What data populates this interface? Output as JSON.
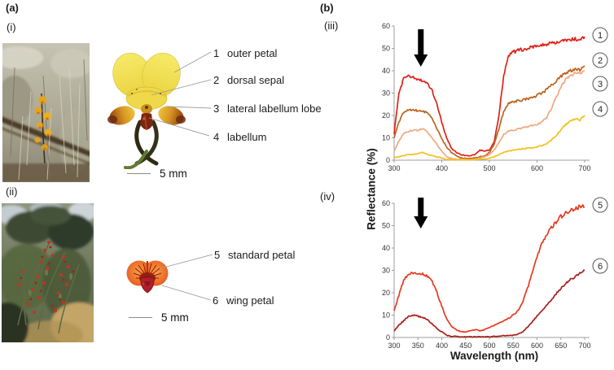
{
  "panel_a": {
    "label": "(a)",
    "sub_i": {
      "label": "(i)",
      "photo_desc": "yellow donkey-orchid flowering in bushland",
      "scale_bar": "5 mm",
      "anatomy_labels": [
        {
          "num": "1",
          "text": "outer petal"
        },
        {
          "num": "2",
          "text": "dorsal sepal"
        },
        {
          "num": "3",
          "text": "lateral labellum lobe"
        },
        {
          "num": "4",
          "text": "labellum"
        }
      ]
    },
    "sub_ii": {
      "label": "(ii)",
      "photo_desc": "shrub with red-orange pea flowers",
      "scale_bar": "5 mm",
      "anatomy_labels": [
        {
          "num": "5",
          "text": "standard petal"
        },
        {
          "num": "6",
          "text": "wing petal"
        }
      ]
    }
  },
  "panel_b": {
    "label": "(b)",
    "y_axis_title": "Reflectance (%)",
    "x_axis_title": "Wavelength (nm)"
  },
  "chart_data": [
    {
      "id": "iii",
      "panel_label": "(iii)",
      "type": "line",
      "xlabel": "Wavelength (nm)",
      "ylabel": "Reflectance (%)",
      "xlim": [
        300,
        700
      ],
      "ylim": [
        0,
        60
      ],
      "x_ticks": [
        300,
        400,
        500,
        600,
        700
      ],
      "y_ticks": [
        0,
        10,
        20,
        30,
        40,
        50,
        60
      ],
      "grid": false,
      "annotation": "black downward arrow marking UV reflectance peak near 350 nm",
      "arrow_nm": 356,
      "x_start": 300,
      "x_step": 10,
      "series": [
        {
          "name": "1",
          "color": "#e02118",
          "values": [
            12,
            30,
            36.5,
            37.5,
            37,
            36,
            35.5,
            34,
            31,
            25,
            17,
            10,
            5.5,
            3.5,
            2.5,
            2,
            2,
            2.5,
            4.5,
            4,
            4.5,
            8,
            20,
            38,
            47,
            48.5,
            49,
            49.5,
            50,
            50.5,
            51,
            51.5,
            52,
            52,
            52.5,
            53,
            53.5,
            54,
            54,
            54,
            54.5
          ]
        },
        {
          "name": "2",
          "color": "#bb641f",
          "values": [
            10,
            17,
            21.5,
            22.5,
            22.5,
            22,
            22,
            21,
            18.5,
            14,
            9.5,
            6,
            3.5,
            2,
            1,
            0.8,
            0.8,
            1,
            1.5,
            2,
            3.5,
            7,
            14,
            22,
            25.5,
            26,
            26.5,
            27,
            27.5,
            28,
            29,
            30,
            31.5,
            33.5,
            35.5,
            37.5,
            39,
            40,
            40.5,
            40.5,
            41.5
          ]
        },
        {
          "name": "3",
          "color": "#f0a87c",
          "values": [
            4,
            8.5,
            12,
            13,
            13.5,
            13.5,
            14,
            12.5,
            10,
            7,
            4,
            1.5,
            0.8,
            0.5,
            0.3,
            0.3,
            0.3,
            0.5,
            1,
            1.5,
            2.5,
            4.5,
            8,
            11.5,
            13,
            13.5,
            14,
            14.5,
            15,
            15.5,
            16,
            17,
            19,
            23,
            28,
            32.5,
            36,
            38,
            39,
            39,
            40.5
          ]
        },
        {
          "name": "4",
          "color": "#f0c11c",
          "values": [
            1,
            1.5,
            2,
            2.5,
            2.5,
            3,
            3.5,
            2.5,
            2,
            1.5,
            1,
            0.3,
            0.2,
            0.2,
            0.2,
            0.2,
            0.2,
            0.3,
            0.5,
            0.5,
            1,
            1.5,
            2.5,
            3.5,
            4,
            4.5,
            5,
            5,
            5.5,
            5.5,
            6,
            6.5,
            7.5,
            9,
            11,
            13.5,
            16,
            17.5,
            18.5,
            18,
            20.5
          ]
        }
      ]
    },
    {
      "id": "iv",
      "panel_label": "(iv)",
      "type": "line",
      "xlabel": "Wavelength (nm)",
      "ylabel": "Reflectance (%)",
      "xlim": [
        300,
        700
      ],
      "ylim": [
        0,
        60
      ],
      "x_ticks": [
        300,
        350,
        400,
        450,
        500,
        550,
        600,
        650,
        700
      ],
      "y_ticks": [
        0,
        10,
        20,
        30,
        40,
        50,
        60
      ],
      "grid": false,
      "annotation": "black downward arrow marking UV reflectance peak near 350 nm",
      "arrow_nm": 356,
      "x_start": 300,
      "x_step": 10,
      "series": [
        {
          "name": "5",
          "color": "#e8391f",
          "values": [
            12,
            19,
            25.5,
            28.5,
            29,
            28.5,
            28.5,
            27.5,
            25,
            20,
            14,
            8.5,
            5,
            3.5,
            2.5,
            2.5,
            3,
            3.5,
            3,
            3.5,
            4.5,
            5.5,
            6.5,
            7.5,
            8.5,
            10,
            12,
            16,
            22,
            29,
            36,
            42,
            46,
            49,
            51.5,
            54,
            55.5,
            57,
            57.5,
            58.5,
            58.5
          ]
        },
        {
          "name": "6",
          "color": "#a81f1a",
          "values": [
            3,
            5.5,
            7.5,
            9.5,
            10,
            9.5,
            9,
            8,
            6,
            4,
            2.5,
            1,
            0.5,
            0.5,
            0.3,
            0.3,
            0.3,
            0.3,
            0.3,
            0.3,
            0.3,
            0.5,
            0.5,
            0.8,
            0.8,
            1,
            1.5,
            2.5,
            4.5,
            7,
            9.5,
            12,
            14.5,
            17,
            19.5,
            22,
            24,
            26,
            27,
            29,
            30
          ]
        }
      ]
    }
  ]
}
